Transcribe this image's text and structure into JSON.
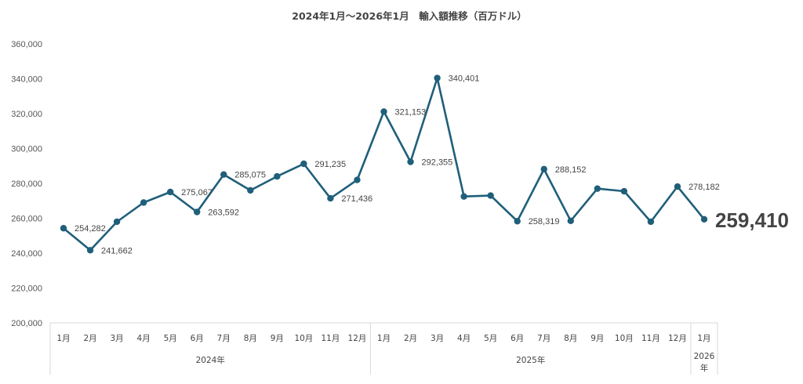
{
  "chart_data": {
    "type": "line",
    "title": "2024年1月～2026年1月　輸入額推移（百万ドル）",
    "xlabel": "",
    "ylabel": "",
    "ylim": [
      200000,
      360000
    ],
    "y_ticks": [
      "200,000",
      "220,000",
      "240,000",
      "260,000",
      "280,000",
      "300,000",
      "320,000",
      "340,000",
      "360,000"
    ],
    "grid": false,
    "legend": "none",
    "line_color": "#1f5f7a",
    "x": [
      "1月",
      "2月",
      "3月",
      "4月",
      "5月",
      "6月",
      "7月",
      "8月",
      "9月",
      "10月",
      "11月",
      "12月",
      "1月",
      "2月",
      "3月",
      "4月",
      "5月",
      "6月",
      "7月",
      "8月",
      "9月",
      "10月",
      "11月",
      "12月",
      "1月"
    ],
    "year_groups": [
      {
        "label": "2024年",
        "count": 12
      },
      {
        "label": "2025年",
        "count": 12
      },
      {
        "label": "2026年",
        "count": 1
      }
    ],
    "series": [
      {
        "values": [
          254282,
          241662,
          258000,
          269000,
          275067,
          263592,
          285075,
          276000,
          284000,
          291235,
          271436,
          282000,
          321153,
          292355,
          340401,
          272500,
          273000,
          258319,
          288152,
          258500,
          277000,
          275500,
          258000,
          278182,
          259410
        ]
      }
    ],
    "data_labels": [
      {
        "index": 0,
        "text": "254,282"
      },
      {
        "index": 1,
        "text": "241,662"
      },
      {
        "index": 4,
        "text": "275,067"
      },
      {
        "index": 5,
        "text": "263,592"
      },
      {
        "index": 6,
        "text": "285,075"
      },
      {
        "index": 9,
        "text": "291,235"
      },
      {
        "index": 10,
        "text": "271,436"
      },
      {
        "index": 12,
        "text": "321,153"
      },
      {
        "index": 13,
        "text": "292,355"
      },
      {
        "index": 14,
        "text": "340,401"
      },
      {
        "index": 17,
        "text": "258,319"
      },
      {
        "index": 18,
        "text": "288,152"
      },
      {
        "index": 23,
        "text": "278,182"
      }
    ],
    "highlight_label": {
      "index": 24,
      "text": "259,410"
    }
  }
}
